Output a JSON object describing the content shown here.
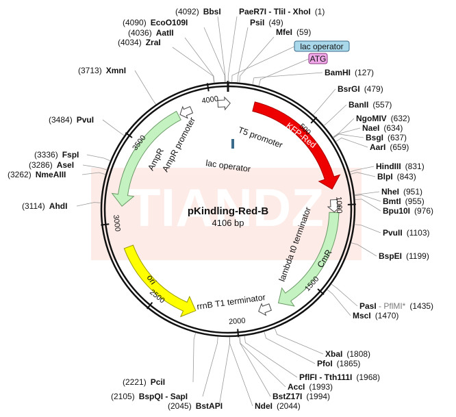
{
  "plasmid": {
    "name": "pKindling-Red-B",
    "size_label": "4106 bp",
    "length": 4106,
    "watermark": "TIANDZ"
  },
  "ticks": [
    {
      "pos": 500,
      "label": "500"
    },
    {
      "pos": 1000,
      "label": "1000"
    },
    {
      "pos": 1500,
      "label": "1500"
    },
    {
      "pos": 2000,
      "label": "2000"
    },
    {
      "pos": 2500,
      "label": "2500"
    },
    {
      "pos": 3000,
      "label": "3000"
    },
    {
      "pos": 3500,
      "label": "3500"
    },
    {
      "pos": 4000,
      "label": "4000"
    }
  ],
  "features": [
    {
      "name": "KFP-Red",
      "type": "cds",
      "color": "#ee0000",
      "start": 160,
      "end": 900,
      "dir": 1
    },
    {
      "name": "CmR",
      "type": "cds",
      "color": "#c4f2c0",
      "start": 1045,
      "end": 1730,
      "dir": 1
    },
    {
      "name": "ori",
      "type": "origin",
      "color": "#ffff00",
      "start": 2255,
      "end": 2845,
      "dir": -1
    },
    {
      "name": "AmpR",
      "type": "cds",
      "color": "#c4f2c0",
      "start": 3100,
      "end": 3790,
      "dir": -1
    },
    {
      "name": "AmpR promoter",
      "type": "promoter",
      "color": "#ffffff",
      "start": 3790,
      "end": 3895,
      "dir": -1
    },
    {
      "name": "T5 promoter",
      "type": "promoter",
      "color": "#ffffff",
      "start": 4065,
      "end": 4090,
      "dir": 1
    },
    {
      "name": "lambda t0 terminator",
      "type": "terminator",
      "color": "#ffffff",
      "start": 985,
      "end": 1015,
      "dir": 1
    },
    {
      "name": "rrnB T1 terminator",
      "type": "terminator",
      "color": "#ffffff",
      "start": 1805,
      "end": 1835,
      "dir": 1
    },
    {
      "name": "lac operator",
      "type": "misc",
      "color": "#3a6b8a",
      "start": 10,
      "end": 30,
      "dir": 0
    }
  ],
  "enzymes_top": [
    {
      "name": "BbsI",
      "pos_label": "(4092)"
    },
    {
      "name": "EcoO109I",
      "pos_label": "(4090)"
    },
    {
      "name": "AatII",
      "pos_label": "(4036)"
    },
    {
      "name": "ZraI",
      "pos_label": "(4034)"
    },
    {
      "name": "PaeR7I - TliI - XhoI",
      "pos_label": "(1)"
    },
    {
      "name": "PsiI",
      "pos_label": "(49)"
    },
    {
      "name": "MfeI",
      "pos_label": "(59)"
    }
  ],
  "annotations": [
    {
      "label": "lac operator",
      "color": "#a8d8ea",
      "border": "#3a6b8a"
    },
    {
      "label": "ATG",
      "color": "#f0a8e8",
      "border": "#8a3a80"
    }
  ],
  "enzymes_right": [
    {
      "name": "BamHI",
      "pos_label": "(127)"
    },
    {
      "name": "BsrGI",
      "pos_label": "(479)"
    },
    {
      "name": "BanII",
      "pos_label": "(557)"
    },
    {
      "name": "NgoMIV",
      "pos_label": "(632)"
    },
    {
      "name": "NaeI",
      "pos_label": "(634)"
    },
    {
      "name": "BsgI",
      "pos_label": "(637)"
    },
    {
      "name": "AarI",
      "pos_label": "(659)"
    },
    {
      "name": "HindIII",
      "pos_label": "(831)"
    },
    {
      "name": "BlpI",
      "pos_label": "(843)"
    },
    {
      "name": "NheI",
      "pos_label": "(951)"
    },
    {
      "name": "BmtI",
      "pos_label": "(955)"
    },
    {
      "name": "Bpu10I",
      "pos_label": "(976)"
    },
    {
      "name": "PvuII",
      "pos_label": "(1103)"
    },
    {
      "name": "BspEI",
      "pos_label": "(1199)"
    },
    {
      "name": "PasI",
      "extra": " - PflMI*",
      "pos_label": "(1435)"
    },
    {
      "name": "MscI",
      "pos_label": "(1470)"
    }
  ],
  "enzymes_bottom_right": [
    {
      "name": "XbaI",
      "pos_label": "(1808)"
    },
    {
      "name": "PfoI",
      "pos_label": "(1865)"
    },
    {
      "name": "PflFI - Tth111I",
      "pos_label": "(1968)"
    },
    {
      "name": "AccI",
      "pos_label": "(1993)"
    },
    {
      "name": "BstZ17I",
      "pos_label": "(1994)"
    },
    {
      "name": "NdeI",
      "pos_label": "(2044)"
    }
  ],
  "enzymes_bottom_left": [
    {
      "name": "BstAPI",
      "pos_label": "(2045)"
    },
    {
      "name": "BspQI - SapI",
      "pos_label": "(2105)"
    },
    {
      "name": "PciI",
      "pos_label": "(2221)"
    }
  ],
  "enzymes_left": [
    {
      "name": "XmnI",
      "pos_label": "(3713)"
    },
    {
      "name": "PvuI",
      "pos_label": "(3484)"
    },
    {
      "name": "FspI",
      "pos_label": "(3336)"
    },
    {
      "name": "AseI",
      "pos_label": "(3286)"
    },
    {
      "name": "NmeAIII",
      "pos_label": "(3262)"
    },
    {
      "name": "AhdI",
      "pos_label": "(3114)"
    }
  ]
}
